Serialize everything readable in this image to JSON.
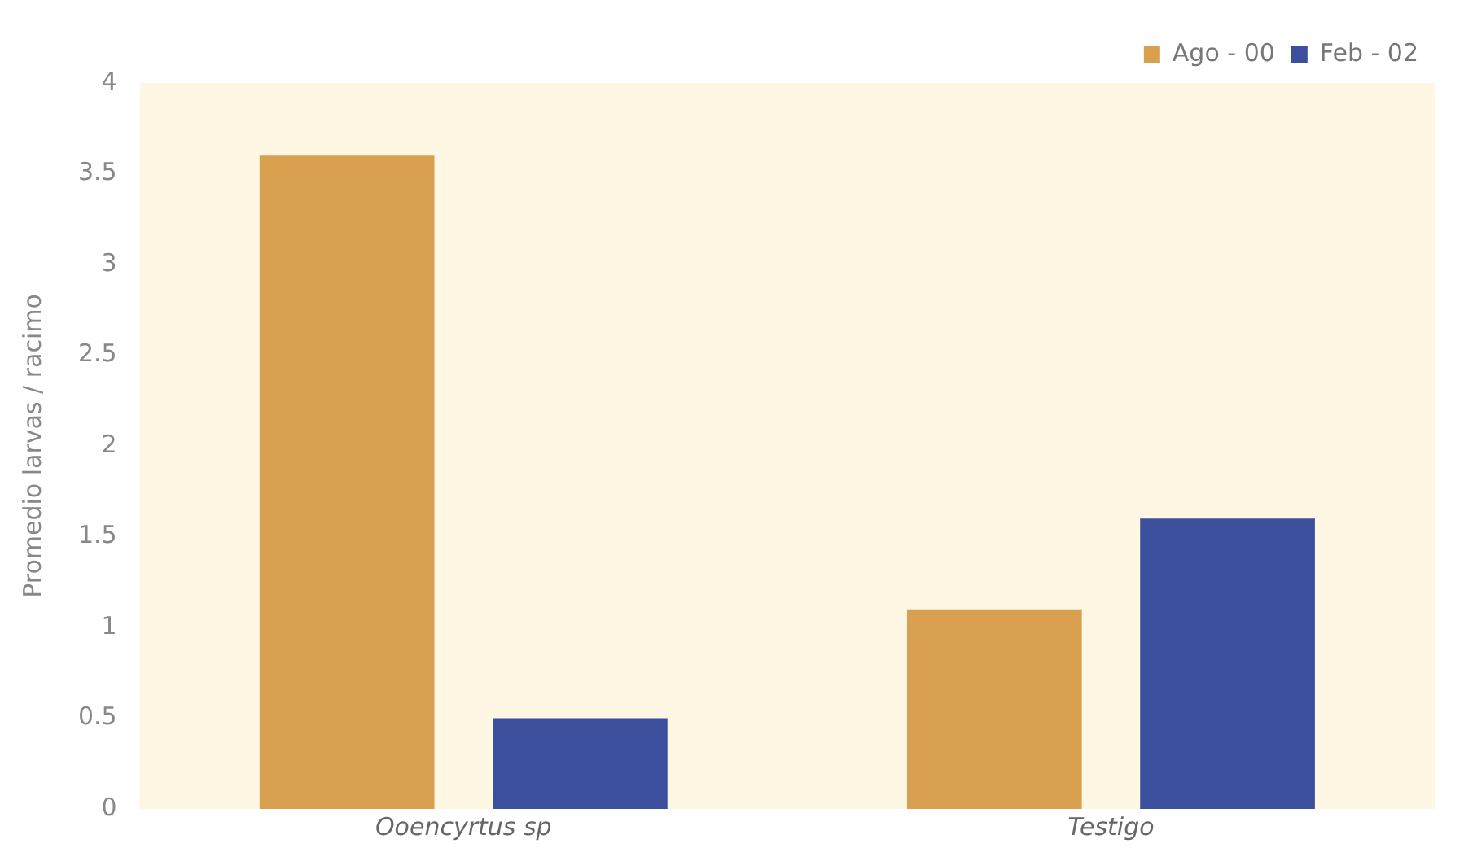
{
  "chart_data": {
    "type": "bar",
    "ylabel": "Promedio larvas / racimo",
    "categories": [
      "Ooencyrtus sp",
      "Testigo"
    ],
    "series": [
      {
        "name": "Ago - 00",
        "color": "#d9a04f",
        "values": [
          3.6,
          1.1
        ]
      },
      {
        "name": "Feb - 02",
        "color": "#3b4f9c",
        "values": [
          0.5,
          1.6
        ]
      }
    ],
    "ylim": [
      0,
      4
    ],
    "yticks": [
      0,
      0.5,
      1,
      1.5,
      2,
      2.5,
      3,
      3.5,
      4
    ],
    "grid": false,
    "legend": "top right"
  }
}
